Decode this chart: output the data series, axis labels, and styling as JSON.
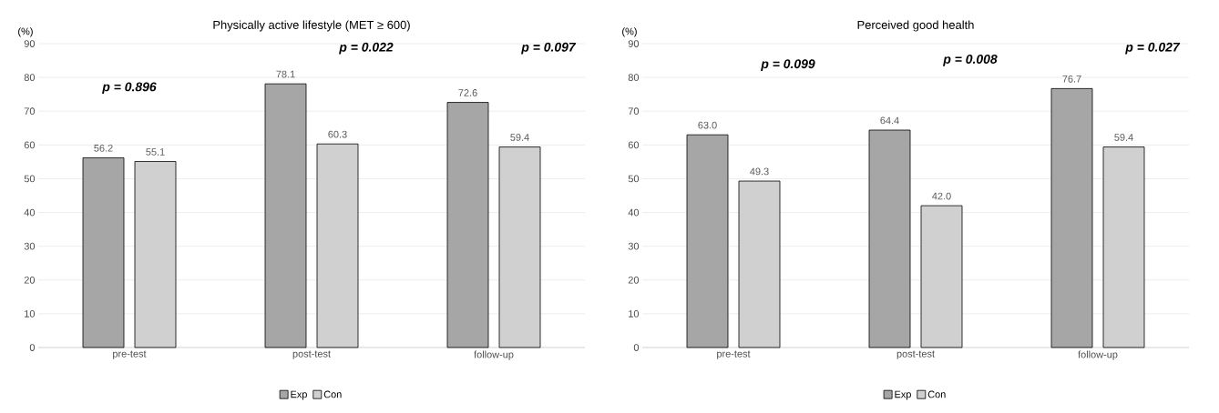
{
  "chart_data": [
    {
      "type": "bar",
      "title": "Physically active lifestyle (MET ≥ 600)",
      "ylabel": "(%)",
      "categories": [
        "pre-test",
        "post-test",
        "follow-up"
      ],
      "series": [
        {
          "name": "Exp",
          "color": "#a6a6a6",
          "values": [
            56.2,
            78.1,
            72.6
          ],
          "value_labels": [
            "56.2",
            "78.1",
            "72.6"
          ]
        },
        {
          "name": "Con",
          "color": "#d0d0d0",
          "values": [
            55.1,
            60.3,
            59.4
          ],
          "value_labels": [
            "55.1",
            "60.3",
            "59.4"
          ]
        }
      ],
      "ylim": [
        0,
        90
      ],
      "yticks": [
        0,
        10,
        20,
        30,
        40,
        50,
        60,
        70,
        80,
        90
      ],
      "grid": "y",
      "legend": "bottom",
      "annotations": [
        "p = 0.896",
        "p = 0.022",
        "p = 0.097"
      ]
    },
    {
      "type": "bar",
      "title": "Perceived good health",
      "ylabel": "(%)",
      "categories": [
        "pre-test",
        "post-test",
        "follow-up"
      ],
      "series": [
        {
          "name": "Exp",
          "color": "#a6a6a6",
          "values": [
            63.0,
            64.4,
            76.7
          ],
          "value_labels": [
            "63.0",
            "64.4",
            "76.7"
          ]
        },
        {
          "name": "Con",
          "color": "#d0d0d0",
          "values": [
            49.3,
            42.0,
            59.4
          ],
          "value_labels": [
            "49.3",
            "42.0",
            "59.4"
          ]
        }
      ],
      "ylim": [
        0,
        90
      ],
      "yticks": [
        0,
        10,
        20,
        30,
        40,
        50,
        60,
        70,
        80,
        90
      ],
      "grid": "y",
      "legend": "bottom",
      "annotations": [
        "p = 0.099",
        "p = 0.008",
        "p = 0.027"
      ]
    }
  ]
}
